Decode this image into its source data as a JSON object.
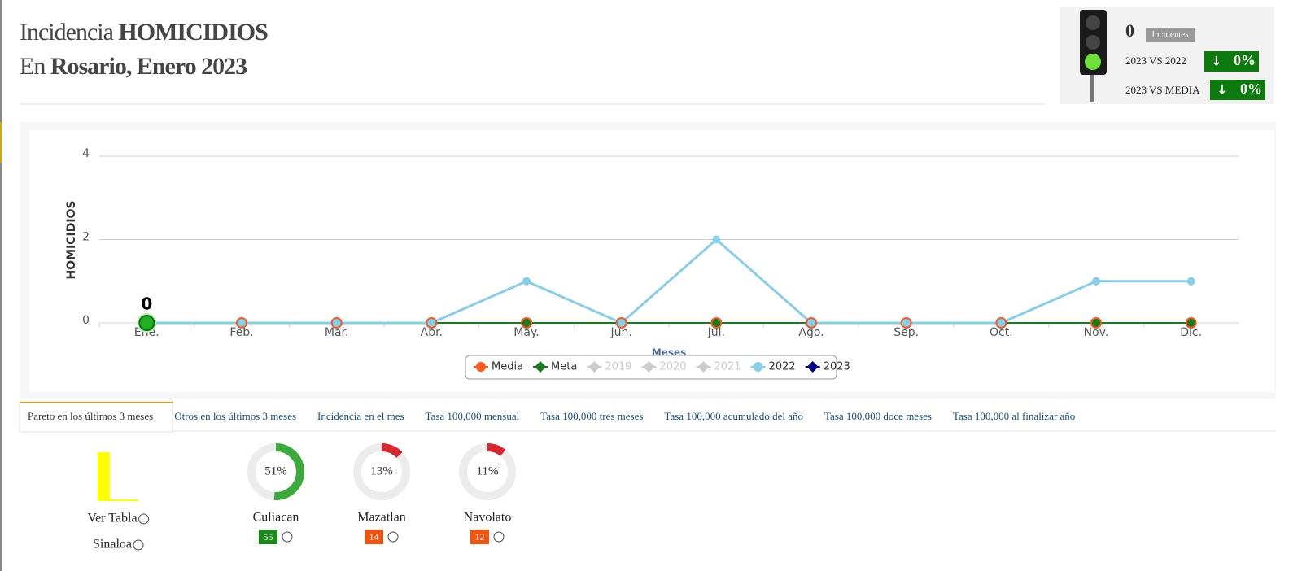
{
  "header": {
    "title_prefix": "Incidencia",
    "title_bold": "HOMICIDIOS",
    "subtitle_prefix": "En",
    "subtitle_bold": "Rosario, Enero 2023"
  },
  "indicator": {
    "count": 0,
    "count_label": "Incidentes",
    "comparisons": [
      {
        "label": "2023 VS 2022",
        "value": "0%"
      },
      {
        "label": "2023 VS MEDIA",
        "value": "0%"
      }
    ]
  },
  "chart_data": {
    "type": "line",
    "y_label": "HOMICIDIOS",
    "x_label": "Meses",
    "categories": [
      "Ene.",
      "Feb.",
      "Mar.",
      "Abr.",
      "May.",
      "Jun.",
      "Jul.",
      "Ago.",
      "Sep.",
      "Oct.",
      "Nov.",
      "Dic."
    ],
    "ylim": [
      0,
      4
    ],
    "yticks": [
      0,
      2,
      4
    ],
    "grid": true,
    "series": [
      {
        "name": "Media",
        "color": "#ff5722",
        "visible": true,
        "values": [
          0,
          0,
          0,
          0,
          0,
          0,
          0,
          0,
          0,
          0,
          0,
          0
        ]
      },
      {
        "name": "Meta",
        "color": "#1b7a1b",
        "visible": true,
        "values": [
          0,
          0,
          0,
          0,
          0,
          0,
          0,
          0,
          0,
          0,
          0,
          0
        ]
      },
      {
        "name": "2019",
        "color": "#cccccc",
        "visible": false,
        "values": [
          null,
          null,
          null,
          null,
          null,
          null,
          null,
          null,
          null,
          null,
          null,
          null
        ]
      },
      {
        "name": "2020",
        "color": "#cccccc",
        "visible": false,
        "values": [
          null,
          null,
          null,
          null,
          null,
          null,
          null,
          null,
          null,
          null,
          null,
          null
        ]
      },
      {
        "name": "2021",
        "color": "#cccccc",
        "visible": false,
        "values": [
          null,
          null,
          null,
          null,
          null,
          null,
          null,
          null,
          null,
          null,
          null,
          null
        ]
      },
      {
        "name": "2022",
        "color": "#87ceeb",
        "visible": true,
        "values": [
          0,
          0,
          0,
          0,
          1,
          0,
          2,
          0,
          0,
          0,
          1,
          1
        ]
      },
      {
        "name": "2023",
        "color": "#000080",
        "visible": true,
        "values": [
          0,
          null,
          null,
          null,
          null,
          null,
          null,
          null,
          null,
          null,
          null,
          null
        ]
      }
    ]
  },
  "tabs": [
    "Pareto en los últimos 3 meses",
    "Otros en los últimos 3 meses",
    "Incidencia en el mes",
    "Tasa 100,000 mensual",
    "Tasa 100,000 tres meses",
    "Tasa 100,000 acumulado del año",
    "Tasa 100,000 doce meses",
    "Tasa 100,000 al finalizar año"
  ],
  "pareto": {
    "links": [
      "Ver Tabla",
      "Sinaloa"
    ],
    "places": [
      {
        "name": "Culiacan",
        "percent": 51,
        "percent_label": "51%",
        "count": 55,
        "color": "#3aaa3a",
        "badge_color": "#1a8a1a"
      },
      {
        "name": "Mazatlan",
        "percent": 13,
        "percent_label": "13%",
        "count": 14,
        "color": "#d9262c",
        "badge_color": "#f0540f"
      },
      {
        "name": "Navolato",
        "percent": 11,
        "percent_label": "11%",
        "count": 12,
        "color": "#d9262c",
        "badge_color": "#f0540f"
      }
    ]
  }
}
